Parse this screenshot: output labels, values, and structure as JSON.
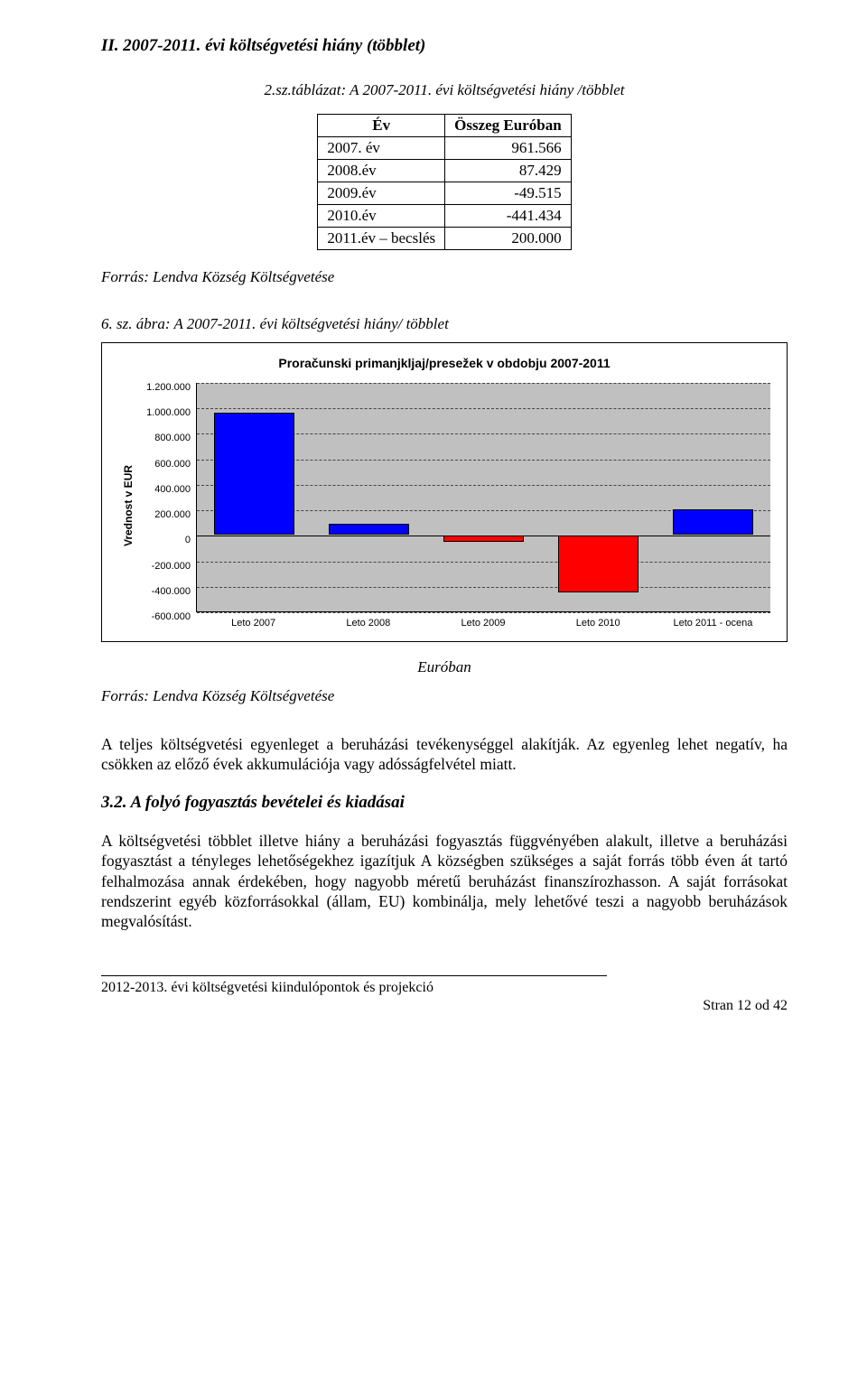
{
  "heading_section": "II.  2007-2011. évi költségvetési hiány (többlet)",
  "table_caption": "2.sz.táblázat: A 2007-2011. évi költségvetési hiány /többlet",
  "table": {
    "headers": [
      "Év",
      "Összeg Euróban"
    ],
    "rows": [
      [
        "2007. év",
        "961.566"
      ],
      [
        "2008.év",
        "87.429"
      ],
      [
        "2009.év",
        "-49.515"
      ],
      [
        "2010.év",
        "-441.434"
      ],
      [
        "2011.év – becslés",
        "200.000"
      ]
    ]
  },
  "source_text": "Forrás: Lendva Község Költségvetése",
  "figure_caption": "6. sz. ábra:  A 2007-2011. évi költségvetési hiány/ többlet",
  "chart": {
    "type": "bar",
    "title": "Proračunski primanjkljaj/presežek v obdobju 2007-2011",
    "y_axis_label": "Vrednost v EUR",
    "categories": [
      "Leto 2007",
      "Leto 2008",
      "Leto 2009",
      "Leto 2010",
      "Leto 2011 - ocena"
    ],
    "values": [
      961566,
      87429,
      -49515,
      -441434,
      200000
    ],
    "bar_colors": [
      "#0000ff",
      "#0000ff",
      "#ff0000",
      "#ff0000",
      "#0000ff"
    ],
    "ylim": [
      -600000,
      1200000
    ],
    "ytick_step": 200000,
    "ytick_labels": [
      "1.200.000",
      "1.000.000",
      "800.000",
      "600.000",
      "400.000",
      "200.000",
      "0",
      "-200.000",
      "-400.000",
      "-600.000"
    ],
    "background_color": "#c0c0c0",
    "grid_color": "#444444",
    "bar_border_color": "#000000",
    "bar_width": 0.7,
    "title_fontsize": 14,
    "label_fontsize": 12
  },
  "euroban_label": "Euróban",
  "para1": "A teljes költségvetési egyenleget a beruházási tevékenységgel alakítják. Az egyenleg lehet negatív, ha csökken az előző évek akkumulációja vagy adósságfelvétel miatt.",
  "subheading": "3.2. A folyó fogyasztás bevételei és kiadásai",
  "para2": "A költségvetési többlet illetve hiány a beruházási fogyasztás függvényében alakult, illetve a beruházási fogyasztást a tényleges lehetőségekhez igazítjuk A községben szükséges a saját forrás több éven át tartó felhalmozása annak érdekében, hogy nagyobb méretű beruházást finanszírozhasson. A saját forrásokat rendszerint egyéb közforrásokkal (állam, EU) kombinálja, mely lehetővé teszi a nagyobb beruházások megvalósítást.",
  "footer_title": "2012-2013. évi költségvetési kiindulópontok és projekció",
  "page_number": "Stran 12 od 42"
}
